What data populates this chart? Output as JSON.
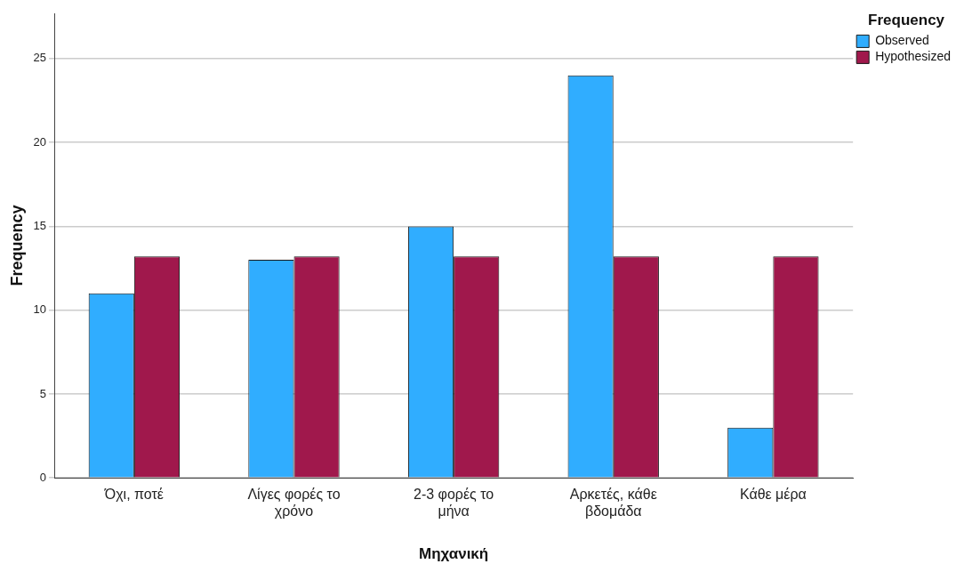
{
  "chart_data": {
    "type": "bar",
    "xlabel": "Μηχανική",
    "ylabel": "Frequency",
    "legend_title": "Frequency",
    "categories": [
      "Όχι, ποτέ",
      "Λίγες φορές το χρόνο",
      "2-3 φορές το μήνα",
      "Αρκετές, κάθε βδομάδα",
      "Κάθε μέρα"
    ],
    "series": [
      {
        "name": "Observed",
        "color": "#30adff",
        "values": [
          11,
          13,
          15,
          24,
          3
        ]
      },
      {
        "name": "Hypothesized",
        "color": "#a0184c",
        "values": [
          13.2,
          13.2,
          13.2,
          13.2,
          13.2
        ]
      }
    ],
    "ylim": [
      0,
      27.7
    ],
    "yticks": [
      0,
      5,
      10,
      15,
      20,
      25
    ],
    "grid": "y",
    "legend": "top right"
  }
}
